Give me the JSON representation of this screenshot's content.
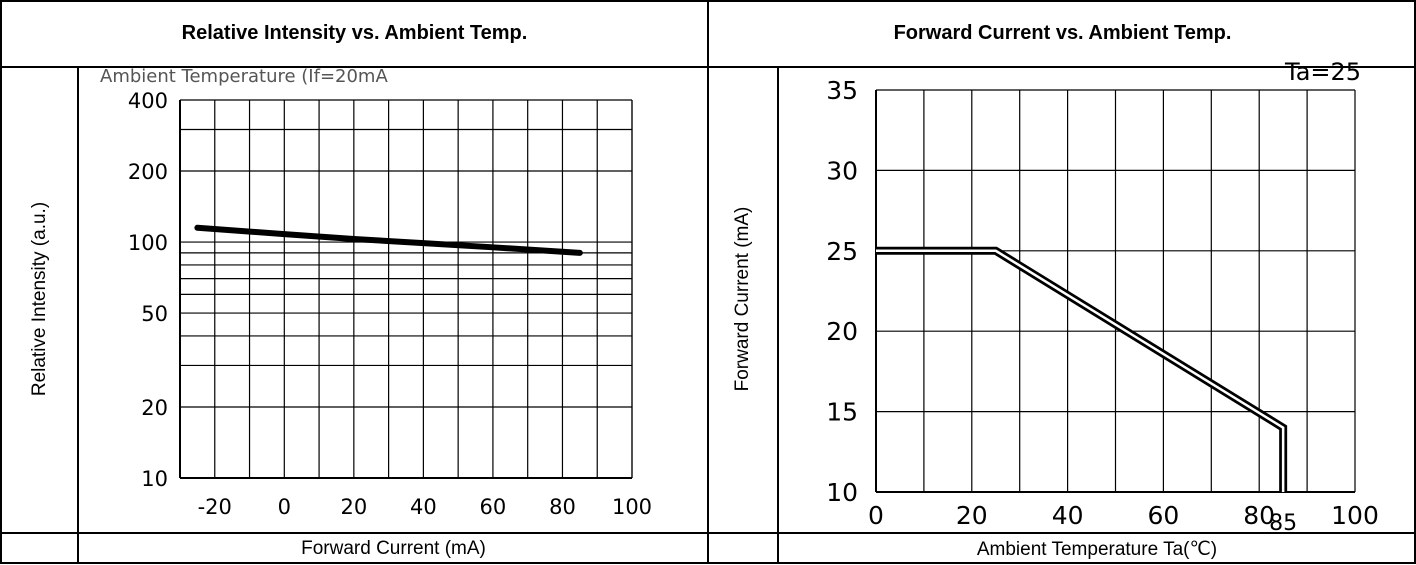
{
  "left_panel": {
    "title": "Relative Intensity vs. Ambient Temp.",
    "ylabel": "Relative Intensity (a.u.)",
    "xlabel": "Forward Current (mA)",
    "faint_header": "Ambient Temperature  (If=20mA"
  },
  "right_panel": {
    "title": "Forward Current vs. Ambient Temp.",
    "ylabel": "Forward Current (mA)",
    "xlabel": "Ambient Temperature Ta(℃)",
    "corner_note": "Ta=25",
    "extra_tick": "85"
  },
  "chart_data": [
    {
      "type": "line",
      "title": "Relative Intensity vs. Ambient Temp.",
      "xlabel": "Forward Current (mA)",
      "ylabel": "Relative Intensity (a.u.)",
      "y_scale": "log",
      "xlim": [
        -30,
        100
      ],
      "ylim": [
        10,
        400
      ],
      "x_ticks": [
        "-20",
        "0",
        "20",
        "40",
        "60",
        "80",
        "100"
      ],
      "y_ticks": [
        "10",
        "20",
        "50",
        "100",
        "200",
        "400"
      ],
      "grid": true,
      "series": [
        {
          "x": [
            -25,
            0,
            20,
            40,
            60,
            85
          ],
          "values": [
            115,
            108,
            103,
            99,
            95,
            90
          ]
        }
      ]
    },
    {
      "type": "line",
      "title": "Forward Current vs. Ambient Temp.",
      "xlabel": "Ambient Temperature Ta(℃)",
      "ylabel": "Forward Current (mA)",
      "xlim": [
        0,
        100
      ],
      "ylim": [
        10,
        35
      ],
      "x_ticks": [
        "0",
        "20",
        "40",
        "60",
        "80",
        "100"
      ],
      "y_ticks": [
        "10",
        "15",
        "20",
        "25",
        "30",
        "35"
      ],
      "grid": true,
      "series": [
        {
          "x": [
            0,
            25,
            85,
            85
          ],
          "values": [
            25,
            25,
            14,
            10
          ]
        }
      ]
    }
  ]
}
